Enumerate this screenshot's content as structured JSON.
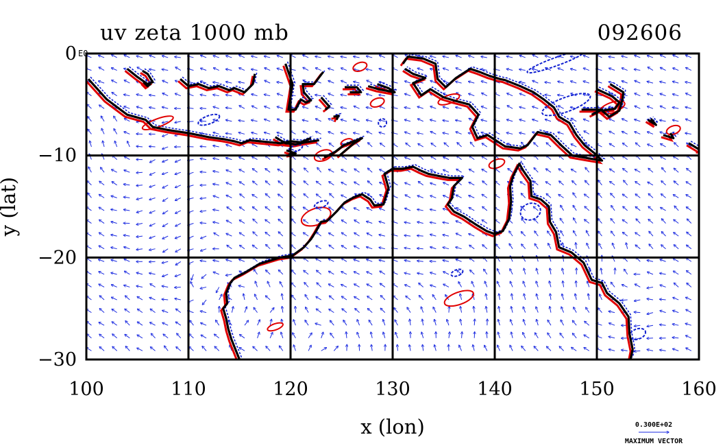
{
  "title": "uv zeta 1000 mb",
  "stamp": "092606",
  "corner_flag": "E0",
  "x_label": "x (lon)",
  "y_label": "y (lat)",
  "x_ticks": [
    "100",
    "110",
    "120",
    "130",
    "140",
    "150",
    "160"
  ],
  "y_ticks": [
    "0",
    "−10",
    "−20",
    "−30"
  ],
  "ref_vector": {
    "value": "0.300E+02",
    "caption": "MAXIMUM VECTOR"
  },
  "colors": {
    "coast": "#000000",
    "positive": "#e00000",
    "negative": "#1020d0",
    "vectors": "#1a2ae0",
    "grid": "#000000"
  },
  "chart_data": {
    "type": "vector-contour-map",
    "xlim": [
      100,
      160
    ],
    "ylim": [
      -30,
      0
    ],
    "grid": true,
    "gridlines_lon": [
      110,
      120,
      130,
      140,
      150
    ],
    "gridlines_lat": [
      -10,
      -20
    ],
    "coastlines": [
      [
        [
          100.2,
          -2.5
        ],
        [
          102,
          -4.5
        ],
        [
          104,
          -6
        ],
        [
          105.8,
          -6.5
        ],
        [
          106.5,
          -7.2
        ],
        [
          108,
          -7.5
        ],
        [
          110,
          -7.8
        ],
        [
          111,
          -8
        ],
        [
          112,
          -8.2
        ],
        [
          113.5,
          -8.4
        ],
        [
          114.5,
          -8.6
        ],
        [
          115.2,
          -8.8
        ],
        [
          116,
          -8.5
        ],
        [
          117,
          -8.6
        ],
        [
          118,
          -8.7
        ],
        [
          119,
          -8.8
        ],
        [
          120,
          -8.6
        ],
        [
          121,
          -8.7
        ],
        [
          122,
          -8.3
        ]
      ],
      [
        [
          104,
          -1.5
        ],
        [
          105,
          -2.3
        ],
        [
          106,
          -3
        ],
        [
          106.5,
          -2.8
        ],
        [
          106,
          -2
        ],
        [
          105.5,
          -1.7
        ]
      ],
      [
        [
          105.6,
          -2.8
        ],
        [
          106,
          -3.2
        ],
        [
          106.3,
          -3
        ]
      ],
      [
        [
          109.2,
          -2.5
        ],
        [
          110,
          -3.2
        ],
        [
          111,
          -3
        ],
        [
          112,
          -3.4
        ],
        [
          113,
          -3.2
        ],
        [
          114,
          -3.6
        ],
        [
          114.5,
          -3.4
        ],
        [
          115.5,
          -3.8
        ],
        [
          116.3,
          -3
        ],
        [
          116.5,
          -2
        ]
      ],
      [
        [
          119.5,
          -1
        ],
        [
          120.2,
          -3
        ],
        [
          119.8,
          -5.5
        ],
        [
          120.5,
          -5.5
        ],
        [
          121,
          -4.5
        ],
        [
          121.5,
          -4.8
        ],
        [
          122,
          -4.6
        ],
        [
          121.3,
          -3.8
        ],
        [
          121.2,
          -3
        ],
        [
          122.3,
          -3
        ],
        [
          123.2,
          -1.8
        ]
      ],
      [
        [
          123,
          -4.3
        ],
        [
          123.8,
          -5.2
        ],
        [
          123.4,
          -5.5
        ]
      ],
      [
        [
          124.2,
          -6.2
        ],
        [
          124.7,
          -6.1
        ],
        [
          124.5,
          -6.5
        ]
      ],
      [
        [
          118.5,
          -8.2
        ],
        [
          119.5,
          -8.8
        ],
        [
          120.5,
          -8.9
        ],
        [
          121.5,
          -8.7
        ],
        [
          122.8,
          -8.5
        ]
      ],
      [
        [
          119.6,
          -9.5
        ],
        [
          120.5,
          -9.8
        ],
        [
          119.8,
          -9.9
        ]
      ],
      [
        [
          123.3,
          -10.2
        ],
        [
          124.3,
          -9.7
        ],
        [
          125.2,
          -9
        ],
        [
          127,
          -8.3
        ],
        [
          126.2,
          -8.8
        ],
        [
          124.8,
          -10
        ]
      ],
      [
        [
          125.3,
          -3.3
        ],
        [
          126.5,
          -3.3
        ],
        [
          126.9,
          -3.8
        ],
        [
          125.8,
          -3.8
        ]
      ],
      [
        [
          127.6,
          -3.2
        ],
        [
          128.6,
          -3.5
        ],
        [
          130.2,
          -3.8
        ],
        [
          129.6,
          -3.4
        ],
        [
          128.5,
          -3
        ]
      ],
      [
        [
          131,
          -1
        ],
        [
          131.5,
          -0.3
        ],
        [
          133,
          -0.5
        ],
        [
          134.2,
          -1
        ],
        [
          134.4,
          -2.5
        ],
        [
          135.2,
          -3.3
        ],
        [
          136.2,
          -2.4
        ],
        [
          137.6,
          -1.5
        ],
        [
          138.5,
          -1.8
        ],
        [
          139.5,
          -2.2
        ],
        [
          140.5,
          -2.5
        ],
        [
          141,
          -2.6
        ],
        [
          142.5,
          -3.2
        ],
        [
          143.8,
          -3.8
        ],
        [
          144.8,
          -4.5
        ],
        [
          145.8,
          -5.3
        ],
        [
          146.3,
          -6.2
        ],
        [
          147.3,
          -6.8
        ],
        [
          148,
          -8
        ],
        [
          148.8,
          -9
        ],
        [
          149.8,
          -9.8
        ],
        [
          150.5,
          -10.5
        ],
        [
          149.3,
          -10.3
        ],
        [
          147.6,
          -10
        ],
        [
          146.5,
          -9
        ],
        [
          145.5,
          -8
        ],
        [
          144.2,
          -7.7
        ],
        [
          143.2,
          -9
        ],
        [
          142.5,
          -9.3
        ],
        [
          141,
          -9.1
        ],
        [
          139.3,
          -8
        ],
        [
          138.3,
          -8.3
        ],
        [
          137.8,
          -7.2
        ],
        [
          138.4,
          -6
        ],
        [
          137.5,
          -5
        ],
        [
          136,
          -4.6
        ],
        [
          135,
          -4.3
        ],
        [
          133.7,
          -3.5
        ],
        [
          132.8,
          -4.1
        ],
        [
          132,
          -2.9
        ],
        [
          133.2,
          -2.4
        ],
        [
          132,
          -2
        ],
        [
          131.2,
          -1.5
        ]
      ],
      [
        [
          150,
          -3.5
        ],
        [
          151.5,
          -4.2
        ],
        [
          152.2,
          -4.8
        ],
        [
          151.8,
          -5.4
        ],
        [
          150.5,
          -5.6
        ],
        [
          151.2,
          -6.2
        ],
        [
          152.2,
          -5.6
        ],
        [
          152.5,
          -4.5
        ],
        [
          152.6,
          -3.8
        ],
        [
          151.3,
          -3
        ]
      ],
      [
        [
          148.5,
          -5.5
        ],
        [
          150.5,
          -5.5
        ],
        [
          149.5,
          -6
        ]
      ],
      [
        [
          155,
          -6.5
        ],
        [
          155.8,
          -7
        ],
        [
          155.3,
          -6.4
        ]
      ],
      [
        [
          156.5,
          -8
        ],
        [
          157.5,
          -8.3
        ],
        [
          157.2,
          -7.8
        ]
      ],
      [
        [
          159,
          -8.8
        ],
        [
          160,
          -9.4
        ],
        [
          160,
          -9.6
        ]
      ],
      [
        [
          130,
          -11.3
        ],
        [
          131,
          -11.3
        ],
        [
          132,
          -11.1
        ],
        [
          132.8,
          -11.5
        ],
        [
          133.5,
          -11.8
        ],
        [
          134.5,
          -12
        ],
        [
          135.6,
          -12.2
        ],
        [
          136.8,
          -12.2
        ],
        [
          136,
          -13
        ],
        [
          135.8,
          -14.2
        ],
        [
          135.4,
          -14.8
        ],
        [
          136,
          -15.5
        ],
        [
          137,
          -16
        ],
        [
          138.2,
          -16.8
        ],
        [
          139.2,
          -17.4
        ],
        [
          140,
          -17.7
        ],
        [
          140.8,
          -17.4
        ],
        [
          141.4,
          -16.2
        ],
        [
          141.6,
          -14.5
        ],
        [
          141.5,
          -13
        ],
        [
          141.8,
          -12
        ],
        [
          142.4,
          -10.8
        ],
        [
          142.8,
          -11.5
        ],
        [
          143.5,
          -12.5
        ],
        [
          143.6,
          -14
        ],
        [
          144.5,
          -14.3
        ],
        [
          145.3,
          -15
        ],
        [
          145.4,
          -16.5
        ],
        [
          146,
          -17.5
        ],
        [
          146.3,
          -19
        ],
        [
          147.5,
          -19.5
        ],
        [
          148.7,
          -20.5
        ],
        [
          149.5,
          -22.2
        ],
        [
          150.5,
          -22.5
        ],
        [
          151,
          -23.5
        ],
        [
          152.2,
          -24.5
        ],
        [
          153.1,
          -25.8
        ],
        [
          153.2,
          -27.5
        ],
        [
          153.5,
          -29
        ],
        [
          153.3,
          -30
        ]
      ],
      [
        [
          130,
          -11.3
        ],
        [
          129.2,
          -11.8
        ],
        [
          129.6,
          -13.2
        ],
        [
          129.1,
          -14.8
        ],
        [
          128.2,
          -14.9
        ],
        [
          127.8,
          -14.3
        ],
        [
          127,
          -13.8
        ],
        [
          126.2,
          -14.1
        ],
        [
          125.3,
          -14.6
        ],
        [
          124.5,
          -15.5
        ],
        [
          123.6,
          -16.4
        ],
        [
          123,
          -16.5
        ],
        [
          122.5,
          -17.4
        ],
        [
          122,
          -18.2
        ],
        [
          121.3,
          -19
        ],
        [
          120.2,
          -19.8
        ],
        [
          119,
          -20
        ],
        [
          118,
          -20.3
        ],
        [
          117,
          -20.6
        ],
        [
          116.5,
          -20.9
        ],
        [
          115.5,
          -21.5
        ],
        [
          114.5,
          -22
        ],
        [
          114.1,
          -22.5
        ],
        [
          113.7,
          -23.5
        ],
        [
          113.8,
          -24.5
        ],
        [
          113.4,
          -25
        ],
        [
          113.7,
          -26
        ],
        [
          113.9,
          -27
        ],
        [
          114.2,
          -28
        ],
        [
          114.6,
          -29
        ],
        [
          115,
          -30
        ]
      ]
    ],
    "contour_loops": [
      {
        "sign": "positive",
        "lon": 123.2,
        "lat": -10,
        "rlon": 0.9,
        "rlat": 0.5
      },
      {
        "sign": "positive",
        "lon": 122.5,
        "lat": -16,
        "rlon": 1.5,
        "rlat": 0.8
      },
      {
        "sign": "positive",
        "lon": 118.5,
        "lat": -26.8,
        "rlon": 0.8,
        "rlat": 0.3
      },
      {
        "sign": "positive",
        "lon": 136.5,
        "lat": -24,
        "rlon": 1.5,
        "rlat": 0.6
      },
      {
        "sign": "positive",
        "lon": 140.2,
        "lat": -10.8,
        "rlon": 0.8,
        "rlat": 0.4
      },
      {
        "sign": "positive",
        "lon": 128.5,
        "lat": -4.8,
        "rlon": 0.7,
        "rlat": 0.4
      },
      {
        "sign": "positive",
        "lon": 135.5,
        "lat": -4.5,
        "rlon": 1.1,
        "rlat": 0.4
      },
      {
        "sign": "positive",
        "lon": 126.8,
        "lat": -1.3,
        "rlon": 0.7,
        "rlat": 0.4
      },
      {
        "sign": "positive",
        "lon": 151.5,
        "lat": -5.3,
        "rlon": 1.3,
        "rlat": 0.5
      },
      {
        "sign": "positive",
        "lon": 157.5,
        "lat": -7.5,
        "rlon": 0.7,
        "rlat": 0.4
      },
      {
        "sign": "positive",
        "lon": 107,
        "lat": -6.8,
        "rlon": 1.6,
        "rlat": 0.4
      },
      {
        "sign": "positive",
        "lon": 125.5,
        "lat": -8.7,
        "rlon": 0.6,
        "rlat": 0.3
      },
      {
        "sign": "negative",
        "lon": 136.3,
        "lat": -21.5,
        "rlon": 0.6,
        "rlat": 0.3
      },
      {
        "sign": "negative",
        "lon": 146,
        "lat": -0.8,
        "rlon": 3,
        "rlat": 0.4
      },
      {
        "sign": "negative",
        "lon": 147,
        "lat": -5,
        "rlon": 2.5,
        "rlat": 0.7
      },
      {
        "sign": "negative",
        "lon": 143.5,
        "lat": -15.5,
        "rlon": 1,
        "rlat": 0.8
      },
      {
        "sign": "negative",
        "lon": 154,
        "lat": -27.5,
        "rlon": 0.8,
        "rlat": 0.5
      },
      {
        "sign": "negative",
        "lon": 129,
        "lat": -6.8,
        "rlon": 0.4,
        "rlat": 0.4
      },
      {
        "sign": "negative",
        "lon": 123,
        "lat": -14.8,
        "rlon": 0.7,
        "rlat": 0.3
      },
      {
        "sign": "negative",
        "lon": 112,
        "lat": -6.5,
        "rlon": 1.1,
        "rlat": 0.4
      },
      {
        "sign": "negative",
        "lon": 120.5,
        "lat": -9.3,
        "rlon": 0.7,
        "rlat": 0.3
      }
    ]
  }
}
